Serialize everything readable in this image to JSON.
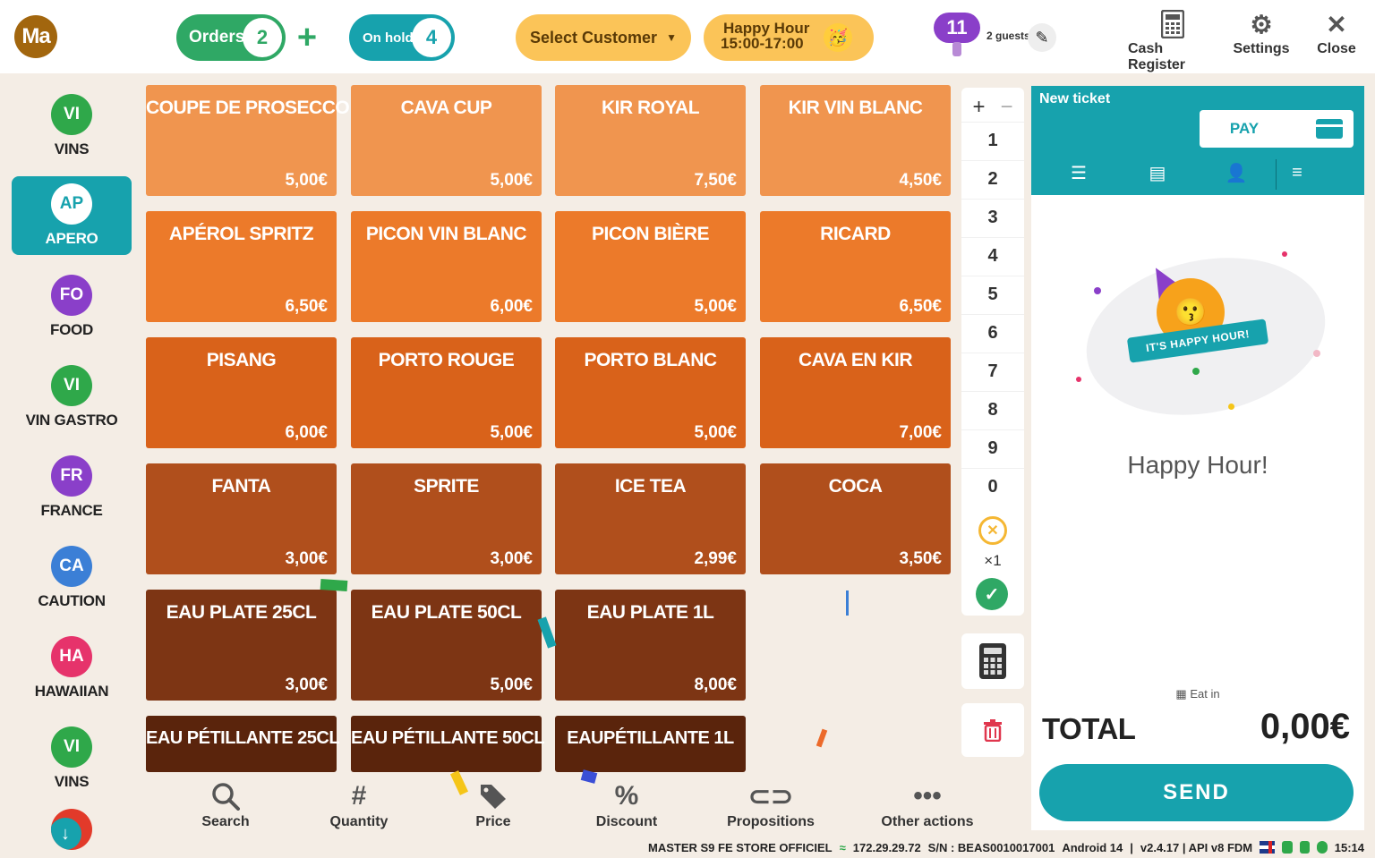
{
  "header": {
    "avatar_initials": "Ma",
    "orders": {
      "label": "Orders",
      "count": "2"
    },
    "on_hold": {
      "label": "On hold",
      "count": "4"
    },
    "select_customer": "Select Customer",
    "happy_hour": {
      "line1": "Happy Hour",
      "line2": "15:00-17:00"
    },
    "guests": {
      "count": "11",
      "label": "2 guests"
    },
    "actions": [
      {
        "label": "Cash Register",
        "icon": "cash-register-icon"
      },
      {
        "label": "Settings",
        "icon": "gear-icon"
      },
      {
        "label": "Close",
        "icon": "close-icon"
      }
    ]
  },
  "categories": [
    {
      "abbr": "VI",
      "name": "VINS",
      "color": "#2fa84a",
      "active": false
    },
    {
      "abbr": "AP",
      "name": "APERO",
      "color": "#17a2ad",
      "active": true
    },
    {
      "abbr": "FO",
      "name": "FOOD",
      "color": "#8a3fc9",
      "active": false
    },
    {
      "abbr": "VI",
      "name": "VIN GASTRO",
      "color": "#2fa84a",
      "active": false
    },
    {
      "abbr": "FR",
      "name": "FRANCE",
      "color": "#8a3fc9",
      "active": false
    },
    {
      "abbr": "CA",
      "name": "CAUTION",
      "color": "#3b7fd6",
      "active": false
    },
    {
      "abbr": "HA",
      "name": "HAWAIIAN",
      "color": "#e6336b",
      "active": false
    },
    {
      "abbr": "VI",
      "name": "VINS",
      "color": "#2fa84a",
      "active": false
    }
  ],
  "scroll_down_icon": "arrow-down-icon",
  "products": [
    {
      "name": "COUPE DE PROSECCO",
      "price": "5,00€",
      "color": "#f0954f"
    },
    {
      "name": "CAVA CUP",
      "price": "5,00€",
      "color": "#f0954f"
    },
    {
      "name": "KIR ROYAL",
      "price": "7,50€",
      "color": "#f0954f"
    },
    {
      "name": "KIR VIN BLANC",
      "price": "4,50€",
      "color": "#f0954f"
    },
    {
      "name": "APÉROL SPRITZ",
      "price": "6,50€",
      "color": "#ec7a2a"
    },
    {
      "name": "PICON VIN BLANC",
      "price": "6,00€",
      "color": "#ec7a2a"
    },
    {
      "name": "PICON BIÈRE",
      "price": "5,00€",
      "color": "#ec7a2a"
    },
    {
      "name": "RICARD",
      "price": "6,50€",
      "color": "#ec7a2a"
    },
    {
      "name": "PISANG",
      "price": "6,00€",
      "color": "#d9621a"
    },
    {
      "name": "PORTO ROUGE",
      "price": "5,00€",
      "color": "#d9621a"
    },
    {
      "name": "PORTO BLANC",
      "price": "5,00€",
      "color": "#d9621a"
    },
    {
      "name": "CAVA EN KIR",
      "price": "7,00€",
      "color": "#d9621a"
    },
    {
      "name": "FANTA",
      "price": "3,00€",
      "color": "#b04f1c"
    },
    {
      "name": "SPRITE",
      "price": "3,00€",
      "color": "#b04f1c"
    },
    {
      "name": "ICE TEA",
      "price": "2,99€",
      "color": "#b04f1c"
    },
    {
      "name": "COCA",
      "price": "3,50€",
      "color": "#b04f1c"
    },
    {
      "name": "EAU PLATE 25CL",
      "price": "3,00€",
      "color": "#7d3514"
    },
    {
      "name": "EAU PLATE 50CL",
      "price": "5,00€",
      "color": "#7d3514"
    },
    {
      "name": "EAU PLATE 1L",
      "price": "8,00€",
      "color": "#7d3514"
    },
    {
      "name": "EAU PÉTILLANTE 25CL",
      "price": "",
      "color": "#5a240c"
    },
    {
      "name": "EAU PÉTILLANTE 50CL",
      "price": "",
      "color": "#5a240c"
    },
    {
      "name": "EAUPÉTILLANTE 1L",
      "price": "",
      "color": "#5a240c"
    }
  ],
  "keypad": {
    "plus": "+",
    "minus": "−",
    "digits": [
      "1",
      "2",
      "3",
      "4",
      "5",
      "6",
      "7",
      "8",
      "9",
      "0"
    ],
    "multiplier": "×1"
  },
  "ticket": {
    "title": "New ticket",
    "pay_label": "PAY",
    "happy_hour_banner": "IT'S HAPPY HOUR!",
    "happy_hour_text": "Happy Hour!",
    "mode": "Eat in",
    "total_label": "TOTAL",
    "total_value": "0,00€",
    "send_label": "SEND"
  },
  "toolbar": [
    {
      "label": "Search",
      "icon": "search-icon"
    },
    {
      "label": "Quantity",
      "icon": "hash-icon"
    },
    {
      "label": "Price",
      "icon": "tag-icon"
    },
    {
      "label": "Discount",
      "icon": "percent-icon"
    },
    {
      "label": "Propositions",
      "icon": "link-icon"
    },
    {
      "label": "Other actions",
      "icon": "more-icon"
    }
  ],
  "status_bar": {
    "store": "MASTER S9 FE STORE OFFICIEL",
    "ip": "172.29.29.72",
    "serial": "S/N : BEAS0010017001",
    "android": "Android 14",
    "version": "v2.4.17 | API v8 FDM",
    "time": "15:14"
  }
}
